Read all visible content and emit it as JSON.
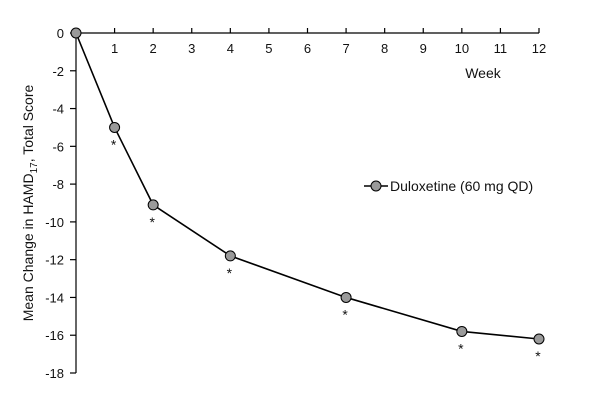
{
  "chart_data": {
    "type": "line",
    "title": "",
    "xlabel": "Week",
    "ylabel": {
      "main": "Mean Change in HAMD",
      "subscript": "17",
      "suffix": ", Total Score"
    },
    "x_ticks": [
      1,
      2,
      3,
      4,
      5,
      6,
      7,
      8,
      9,
      10,
      11,
      12
    ],
    "y_ticks": [
      0,
      -2,
      -4,
      -6,
      -8,
      -10,
      -12,
      -14,
      -16,
      -18
    ],
    "xlim": [
      0,
      12
    ],
    "ylim": [
      -18,
      0
    ],
    "grid": false,
    "legend_position": "right",
    "series": [
      {
        "name": "Duloxetine (60 mg QD)",
        "color": "#000000",
        "marker_fill": "#9a9a9a",
        "x": [
          0,
          1,
          2,
          4,
          7,
          10,
          12
        ],
        "y": [
          0,
          -5.0,
          -9.1,
          -11.8,
          -14.0,
          -15.8,
          -16.2
        ],
        "significance": [
          "",
          "*",
          "*",
          "*",
          "*",
          "*",
          "*"
        ]
      }
    ]
  }
}
